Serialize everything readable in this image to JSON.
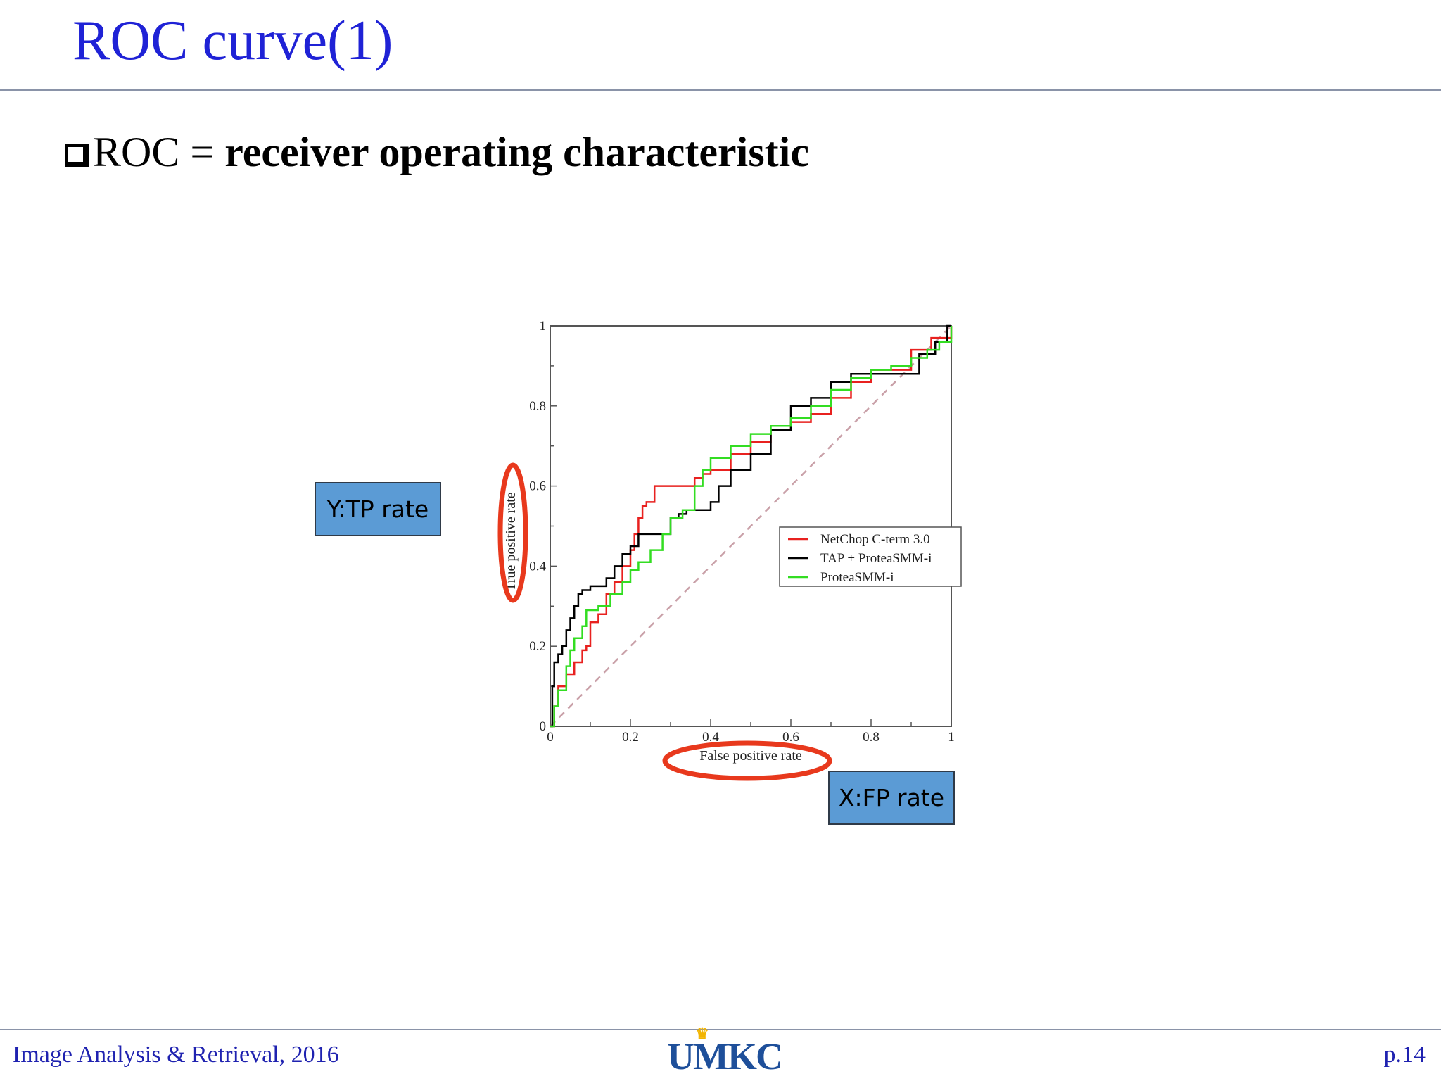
{
  "slide": {
    "title": "ROC curve(1)",
    "bullet_prefix": "ROC = ",
    "bullet_bold": "receiver operating characteristic"
  },
  "callouts": {
    "y_label": "Y:TP rate",
    "x_label": "X:FP rate"
  },
  "footer": {
    "left": "Image Analysis & Retrieval, 2016",
    "logo": "UMKC",
    "page": "p.14"
  },
  "colors": {
    "title": "#1f22d6",
    "callout_fill": "#5b9bd5",
    "highlight_ring": "#e8391d",
    "diagonal": "#c9a0a8"
  },
  "chart_data": {
    "type": "line",
    "title": "",
    "xlabel": "False positive rate",
    "ylabel": "True positive rate",
    "xlim": [
      0,
      1
    ],
    "ylim": [
      0,
      1
    ],
    "xticks": [
      "0",
      "0.2",
      "0.4",
      "0.6",
      "0.8",
      "1"
    ],
    "yticks": [
      "0",
      "0.2",
      "0.4",
      "0.6",
      "0.8",
      "1"
    ],
    "legend_position": "center-right",
    "series": [
      {
        "name": "NetChop C-term 3.0",
        "color": "#e8211f",
        "x": [
          0,
          0.01,
          0.02,
          0.04,
          0.06,
          0.08,
          0.09,
          0.1,
          0.12,
          0.14,
          0.16,
          0.18,
          0.2,
          0.21,
          0.22,
          0.23,
          0.24,
          0.26,
          0.28,
          0.35,
          0.36,
          0.38,
          0.4,
          0.45,
          0.5,
          0.55,
          0.6,
          0.65,
          0.7,
          0.75,
          0.8,
          0.9,
          0.95,
          1.0
        ],
        "y": [
          0,
          0.05,
          0.1,
          0.13,
          0.16,
          0.19,
          0.2,
          0.26,
          0.28,
          0.33,
          0.36,
          0.4,
          0.44,
          0.48,
          0.52,
          0.55,
          0.56,
          0.6,
          0.6,
          0.6,
          0.62,
          0.63,
          0.64,
          0.68,
          0.71,
          0.74,
          0.76,
          0.78,
          0.82,
          0.86,
          0.89,
          0.94,
          0.97,
          1.0
        ]
      },
      {
        "name": "TAP + ProteaSMM-i",
        "color": "#000000",
        "x": [
          0,
          0.005,
          0.01,
          0.02,
          0.03,
          0.04,
          0.05,
          0.06,
          0.07,
          0.08,
          0.1,
          0.14,
          0.16,
          0.18,
          0.2,
          0.22,
          0.24,
          0.28,
          0.3,
          0.32,
          0.34,
          0.38,
          0.4,
          0.42,
          0.45,
          0.5,
          0.55,
          0.6,
          0.65,
          0.7,
          0.75,
          0.85,
          0.92,
          0.96,
          0.99,
          1.0
        ],
        "y": [
          0,
          0.1,
          0.16,
          0.18,
          0.2,
          0.24,
          0.27,
          0.3,
          0.33,
          0.34,
          0.35,
          0.37,
          0.4,
          0.43,
          0.45,
          0.48,
          0.48,
          0.48,
          0.52,
          0.53,
          0.54,
          0.54,
          0.56,
          0.6,
          0.64,
          0.68,
          0.74,
          0.8,
          0.82,
          0.86,
          0.88,
          0.88,
          0.93,
          0.96,
          1.0,
          1.0
        ]
      },
      {
        "name": "ProteaSMM-i",
        "color": "#33dd22",
        "x": [
          0,
          0.01,
          0.02,
          0.04,
          0.05,
          0.06,
          0.08,
          0.09,
          0.12,
          0.15,
          0.18,
          0.2,
          0.22,
          0.25,
          0.28,
          0.3,
          0.33,
          0.36,
          0.38,
          0.4,
          0.45,
          0.5,
          0.55,
          0.6,
          0.65,
          0.7,
          0.75,
          0.8,
          0.85,
          0.9,
          0.94,
          0.97,
          1.0
        ],
        "y": [
          0,
          0.05,
          0.09,
          0.15,
          0.19,
          0.22,
          0.25,
          0.29,
          0.3,
          0.33,
          0.36,
          0.39,
          0.41,
          0.44,
          0.48,
          0.52,
          0.54,
          0.6,
          0.64,
          0.67,
          0.7,
          0.73,
          0.75,
          0.77,
          0.8,
          0.84,
          0.87,
          0.89,
          0.9,
          0.92,
          0.94,
          0.96,
          1.0
        ]
      }
    ]
  }
}
